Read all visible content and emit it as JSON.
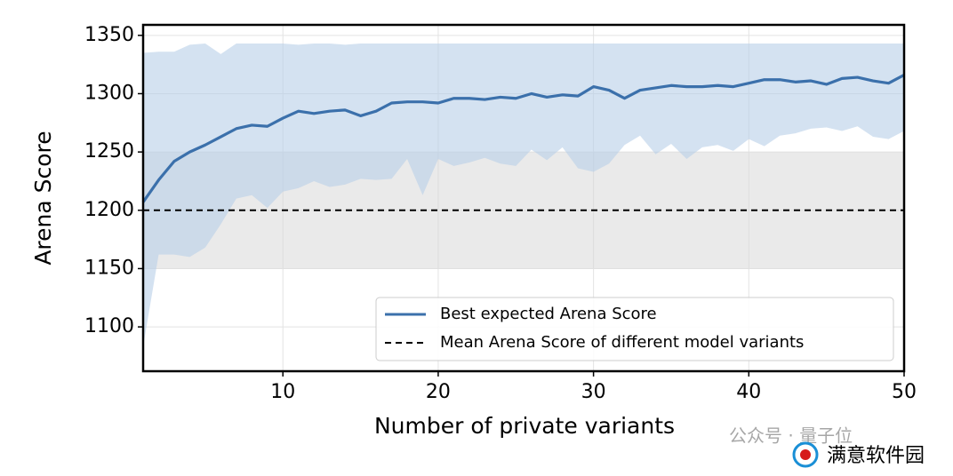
{
  "chart_data": {
    "type": "line",
    "xlabel": "Number of private variants",
    "ylabel": "Arena Score",
    "x": [
      1,
      2,
      3,
      4,
      5,
      6,
      7,
      8,
      9,
      10,
      11,
      12,
      13,
      14,
      15,
      16,
      17,
      18,
      19,
      20,
      21,
      22,
      23,
      24,
      25,
      26,
      27,
      28,
      29,
      30,
      31,
      32,
      33,
      34,
      35,
      36,
      37,
      38,
      39,
      40,
      41,
      42,
      43,
      44,
      45,
      46,
      47,
      48,
      49,
      50
    ],
    "series": [
      {
        "name": "Best expected Arena Score",
        "color": "#3b70ab",
        "values": [
          1207,
          1226,
          1242,
          1250,
          1256,
          1263,
          1270,
          1273,
          1272,
          1279,
          1285,
          1283,
          1285,
          1286,
          1281,
          1285,
          1292,
          1293,
          1293,
          1292,
          1296,
          1296,
          1295,
          1297,
          1296,
          1300,
          1297,
          1299,
          1298,
          1306,
          1303,
          1296,
          1303,
          1305,
          1307,
          1306,
          1306,
          1307,
          1306,
          1309,
          1312,
          1312,
          1310,
          1311,
          1308,
          1313,
          1314,
          1311,
          1309,
          1316
        ]
      },
      {
        "name": "Mean Arena Score of different model variants",
        "color": "#000000",
        "value": 1200
      }
    ],
    "band": {
      "color": "#b8cfe8",
      "upper": [
        1335,
        1336,
        1336,
        1342,
        1343,
        1334,
        1343,
        1343,
        1343,
        1343,
        1342,
        1343,
        1343,
        1342,
        1343,
        1343,
        1343,
        1343,
        1343,
        1343,
        1343,
        1343,
        1343,
        1343,
        1343,
        1343,
        1343,
        1343,
        1343,
        1343,
        1343,
        1343,
        1343,
        1343,
        1343,
        1343,
        1343,
        1343,
        1343,
        1343,
        1343,
        1343,
        1343,
        1343,
        1343,
        1343,
        1343,
        1343,
        1343,
        1343
      ],
      "lower": [
        1083,
        1162,
        1162,
        1160,
        1168,
        1188,
        1210,
        1213,
        1202,
        1216,
        1219,
        1225,
        1220,
        1222,
        1227,
        1226,
        1227,
        1244,
        1213,
        1244,
        1238,
        1241,
        1245,
        1240,
        1238,
        1252,
        1243,
        1254,
        1236,
        1233,
        1240,
        1256,
        1264,
        1248,
        1257,
        1244,
        1254,
        1256,
        1251,
        1261,
        1255,
        1264,
        1266,
        1270,
        1271,
        1268,
        1272,
        1263,
        1261,
        1268
      ]
    },
    "spread": {
      "color": "#d9d9d9",
      "range": [
        1150,
        1250
      ]
    },
    "xlim": [
      1,
      50
    ],
    "ylim": [
      1062,
      1359
    ],
    "xticks": [
      10,
      20,
      30,
      40,
      50
    ],
    "yticks": [
      1100,
      1150,
      1200,
      1250,
      1300,
      1350
    ],
    "grid": true,
    "legend": "lower right",
    "watermarks": [
      "公众号 · 量子位",
      "满意软件园"
    ]
  }
}
